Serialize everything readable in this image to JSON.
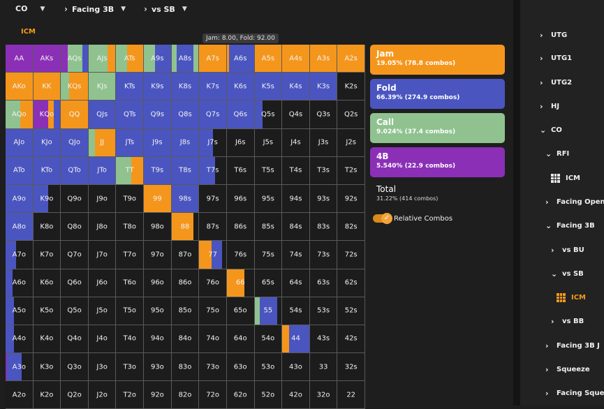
{
  "breadcrumb": {
    "position": "CO",
    "scenario": "Facing 3B",
    "opponent": "vs SB"
  },
  "mode_label": "ICM",
  "tooltip": "Jam: 8.00, Fold: 92.00",
  "colors": {
    "jam": "#f5961c",
    "fold": "#4a55c0",
    "call": "#8fc28f",
    "fourbet": "#8b2fb6",
    "empty": "#1c1c1c",
    "accent": "#f39a1c"
  },
  "legend": [
    {
      "key": "jam",
      "name": "Jam",
      "stat": "19.05% (78.8 combos)",
      "color": "#f5961c"
    },
    {
      "key": "fold",
      "name": "Fold",
      "stat": "66.39% (274.9 combos)",
      "color": "#4a55c0"
    },
    {
      "key": "call",
      "name": "Call",
      "stat": "9.024% (37.4 combos)",
      "color": "#8fc28f"
    },
    {
      "key": "fourbet",
      "name": "4B",
      "stat": "5.540% (22.9 combos)",
      "color": "#8b2fb6"
    }
  ],
  "total": {
    "label": "Total",
    "stat": "31.22% (414 combos)"
  },
  "toggle": {
    "label": "Relative Combos",
    "on": true
  },
  "hands": [
    [
      "AA",
      "AKs",
      "AQs",
      "AJs",
      "ATs",
      "A9s",
      "A8s",
      "A7s",
      "A6s",
      "A5s",
      "A4s",
      "A3s",
      "A2s"
    ],
    [
      "AKo",
      "KK",
      "KQs",
      "KJs",
      "KTs",
      "K9s",
      "K8s",
      "K7s",
      "K6s",
      "K5s",
      "K4s",
      "K3s",
      "K2s"
    ],
    [
      "AQo",
      "KQo",
      "QQ",
      "QJs",
      "QTs",
      "Q9s",
      "Q8s",
      "Q7s",
      "Q6s",
      "Q5s",
      "Q4s",
      "Q3s",
      "Q2s"
    ],
    [
      "AJo",
      "KJo",
      "QJo",
      "JJ",
      "JTs",
      "J9s",
      "J8s",
      "J7s",
      "J6s",
      "J5s",
      "J4s",
      "J3s",
      "J2s"
    ],
    [
      "ATo",
      "KTo",
      "QTo",
      "JTo",
      "TT",
      "T9s",
      "T8s",
      "T7s",
      "T6s",
      "T5s",
      "T4s",
      "T3s",
      "T2s"
    ],
    [
      "A9o",
      "K9o",
      "Q9o",
      "J9o",
      "T9o",
      "99",
      "98s",
      "97s",
      "96s",
      "95s",
      "94s",
      "93s",
      "92s"
    ],
    [
      "A8o",
      "K8o",
      "Q8o",
      "J8o",
      "T8o",
      "98o",
      "88",
      "87s",
      "86s",
      "85s",
      "84s",
      "83s",
      "82s"
    ],
    [
      "A7o",
      "K7o",
      "Q7o",
      "J7o",
      "T7o",
      "97o",
      "87o",
      "77",
      "76s",
      "75s",
      "74s",
      "73s",
      "72s"
    ],
    [
      "A6o",
      "K6o",
      "Q6o",
      "J6o",
      "T6o",
      "96o",
      "86o",
      "76o",
      "66",
      "65s",
      "64s",
      "63s",
      "62s"
    ],
    [
      "A5o",
      "K5o",
      "Q5o",
      "J5o",
      "T5o",
      "95o",
      "85o",
      "75o",
      "65o",
      "55",
      "54s",
      "53s",
      "52s"
    ],
    [
      "A4o",
      "K4o",
      "Q4o",
      "J4o",
      "T4o",
      "94o",
      "84o",
      "74o",
      "64o",
      "54o",
      "44",
      "43s",
      "42s"
    ],
    [
      "A3o",
      "K3o",
      "Q3o",
      "J3o",
      "T3o",
      "93o",
      "83o",
      "73o",
      "63o",
      "53o",
      "43o",
      "33",
      "32s"
    ],
    [
      "A2o",
      "K2o",
      "Q2o",
      "J2o",
      "T2o",
      "92o",
      "82o",
      "72o",
      "62o",
      "52o",
      "42o",
      "32o",
      "22"
    ]
  ],
  "strategy": {
    "AA": {
      "fourbet": 1.0
    },
    "AKs": {
      "fourbet": 1.0
    },
    "AQs": {
      "call": 0.55,
      "fold": 0.2,
      "fourbet": 0.25
    },
    "AJs": {
      "call": 0.7,
      "jam": 0.3
    },
    "ATs": {
      "jam": 0.6,
      "call": 0.4
    },
    "A9s": {
      "fold": 0.6,
      "call": 0.4
    },
    "A8s": {
      "call": 0.2,
      "fold": 0.6,
      "call2": 0.2
    },
    "A7s": {
      "jam": 1.0
    },
    "A6s": {
      "jam": 0.08,
      "fold": 0.92
    },
    "A5s": {
      "jam": 1.0
    },
    "A4s": {
      "jam": 1.0
    },
    "A3s": {
      "jam": 1.0
    },
    "A2s": {
      "jam": 1.0
    },
    "AKo": {
      "jam": 1.0
    },
    "KK": {
      "jam": 1.0
    },
    "KQs": {
      "jam": 0.7,
      "call": 0.3
    },
    "KJs": {
      "call": 1.0
    },
    "KTs": {
      "fold": 1.0
    },
    "K9s": {
      "fold": 1.0
    },
    "K8s": {
      "fold": 1.0
    },
    "K7s": {
      "fold": 1.0
    },
    "K6s": {
      "fold": 1.0
    },
    "K5s": {
      "fold": 1.0
    },
    "K4s": {
      "fold": 1.0
    },
    "K3s": {
      "fold": 1.0
    },
    "AQo": {
      "jam": 0.45,
      "call": 0.55
    },
    "KQo": {
      "jam": 0.2,
      "fold": 0.25,
      "fourbet": 0.55
    },
    "QQ": {
      "jam": 1.0
    },
    "QJs": {
      "fold": 1.0
    },
    "QTs": {
      "fold": 1.0
    },
    "Q9s": {
      "fold": 1.0
    },
    "Q8s": {
      "fold": 1.0
    },
    "Q7s": {
      "fold": 1.0
    },
    "Q6s": {
      "fold": 1.0
    },
    "Q5s": {
      "fold": 0.3
    },
    "AJo": {
      "fold": 1.0
    },
    "KJo": {
      "fold": 1.0
    },
    "QJo": {
      "fold": 1.0
    },
    "JJ": {
      "call": 0.25,
      "jam": 0.75
    },
    "JTs": {
      "fold": 1.0
    },
    "J9s": {
      "fold": 1.0
    },
    "J8s": {
      "fold": 1.0
    },
    "J7s": {
      "fold": 0.5
    },
    "ATo": {
      "fold": 1.0
    },
    "KTo": {
      "fold": 1.0
    },
    "QTo": {
      "fold": 1.0
    },
    "JTo": {
      "fold": 1.0
    },
    "TT": {
      "jam": 0.45,
      "call": 0.55
    },
    "T9s": {
      "fold": 1.0
    },
    "T8s": {
      "fold": 1.0
    },
    "T7s": {
      "fold": 0.6
    },
    "A9o": {
      "fold": 1.0
    },
    "K9o": {
      "fold": 0.55
    },
    "99": {
      "jam": 1.0
    },
    "98s": {
      "fold": 1.0
    },
    "A8o": {
      "fold": 1.0
    },
    "88": {
      "jam": 0.8
    },
    "A7o": {
      "fold": 0.4
    },
    "77": {
      "jam": 0.45,
      "fold": 0.4
    },
    "A6o": {
      "fold": 0.25
    },
    "66": {
      "jam": 0.65
    },
    "A5o": {
      "fold": 0.3
    },
    "55": {
      "fold": 0.65,
      "call": 0.2
    },
    "A4o": {
      "fold": 0.3
    },
    "44": {
      "jam": 0.25,
      "fold": 0.75
    },
    "A3o": {
      "fold": 0.55,
      "fourbet": 0.05
    }
  },
  "sidebar": [
    {
      "label": "UTG",
      "chev": "›",
      "indent": 0
    },
    {
      "label": "UTG1",
      "chev": "›",
      "indent": 0
    },
    {
      "label": "UTG2",
      "chev": "›",
      "indent": 0
    },
    {
      "label": "HJ",
      "chev": "›",
      "indent": 0
    },
    {
      "label": "CO",
      "chev": "⌄",
      "indent": 0
    },
    {
      "label": "RFI",
      "chev": "⌄",
      "indent": 1
    },
    {
      "label": "ICM",
      "chev": "grid",
      "indent": 2,
      "active": false
    },
    {
      "label": "Facing Open",
      "chev": "›",
      "indent": 1
    },
    {
      "label": "Facing 3B",
      "chev": "⌄",
      "indent": 1
    },
    {
      "label": "vs BU",
      "chev": "›",
      "indent": 2
    },
    {
      "label": "vs SB",
      "chev": "⌄",
      "indent": 2
    },
    {
      "label": "ICM",
      "chev": "grid",
      "indent": 3,
      "active": true
    },
    {
      "label": "vs BB",
      "chev": "›",
      "indent": 2
    },
    {
      "label": "Facing 3B J",
      "chev": "›",
      "indent": 1
    },
    {
      "label": "Squeeze",
      "chev": "›",
      "indent": 1
    },
    {
      "label": "Facing Squeeze",
      "chev": "›",
      "indent": 1
    }
  ]
}
